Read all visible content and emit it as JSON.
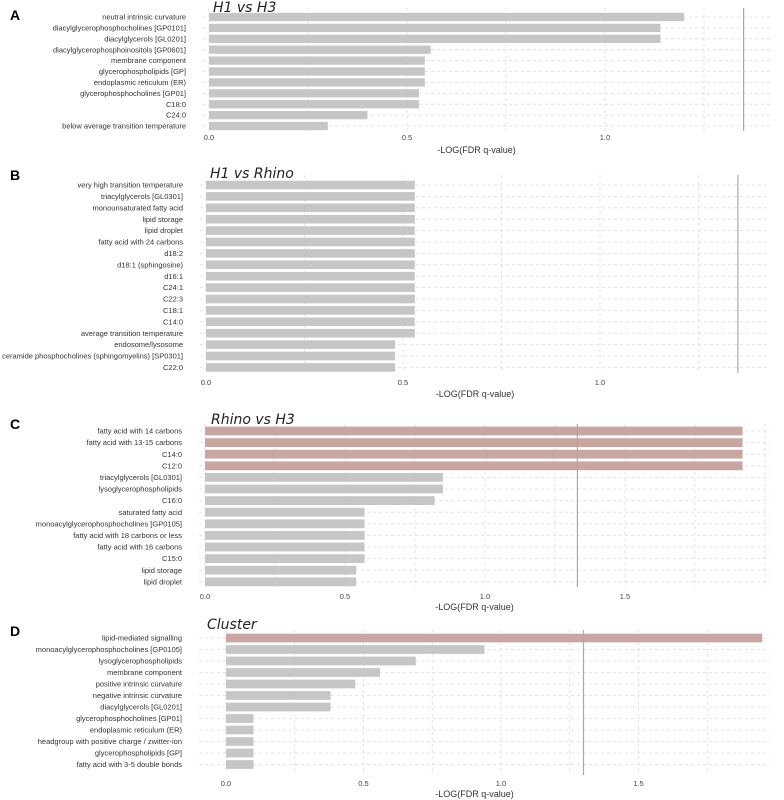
{
  "chart_data": [
    {
      "type": "bar",
      "orientation": "horizontal",
      "panel": "A",
      "title": "H1 vs H3",
      "xlabel": "-LOG(FDR q-value)",
      "ticks": [
        "0.0",
        "0.5",
        "1.0"
      ],
      "reference_line": 1.35,
      "categories": [
        "neutral intrinsic curvature",
        "diacylglycerophosphocholines [GP0101]",
        "diacylglycerols [GL0201]",
        "diacylglycerophosphoinositols [GP0601]",
        "membrane component",
        "glycerophospholipids [GP]",
        "endoplasmic reticulum (ER)",
        "glycerophosphocholines [GP01]",
        "C18:0",
        "C24:0",
        "below average transition temperature"
      ],
      "values": [
        1.2,
        1.14,
        1.14,
        0.56,
        0.545,
        0.545,
        0.545,
        0.53,
        0.53,
        0.4,
        0.3
      ],
      "highlight": [
        false,
        false,
        false,
        false,
        false,
        false,
        false,
        false,
        false,
        false,
        false
      ]
    },
    {
      "type": "bar",
      "orientation": "horizontal",
      "panel": "B",
      "title": "H1 vs Rhino",
      "xlabel": "-LOG(FDR q-value)",
      "ticks": [
        "0.0",
        "0.5",
        "1.0"
      ],
      "reference_line": 1.35,
      "categories": [
        "very high transition temperature",
        "triacylglycerols [GL0301]",
        "monounsaturated fatty acid",
        "lipid storage",
        "lipid droplet",
        "fatty acid with 24 carbons",
        "d18:2",
        "d18:1 (sphingosine)",
        "d16:1",
        "C24:1",
        "C22:3",
        "C18:1",
        "C14:0",
        "average transition temperature",
        "endosome/lysosome",
        "ceramide phosphocholines (sphingomyelins) [SP0301]",
        "C22:0"
      ],
      "values": [
        0.53,
        0.53,
        0.53,
        0.53,
        0.53,
        0.53,
        0.53,
        0.53,
        0.53,
        0.53,
        0.53,
        0.53,
        0.53,
        0.53,
        0.48,
        0.48,
        0.48
      ],
      "highlight": [
        false,
        false,
        false,
        false,
        false,
        false,
        false,
        false,
        false,
        false,
        false,
        false,
        false,
        false,
        false,
        false,
        false
      ]
    },
    {
      "type": "bar",
      "orientation": "horizontal",
      "panel": "C",
      "title": "Rhino vs H3",
      "xlabel": "-LOG(FDR q-value)",
      "ticks": [
        "0.0",
        "0.5",
        "1.0",
        "1.5"
      ],
      "reference_line": 1.33,
      "categories": [
        "fatty acid with 14 carbons",
        "fatty acid with 13-15 carbons",
        "C14:0",
        "C12:0",
        "triacylglycerols [GL0301]",
        "lysoglycerophospholipids",
        "C16:0",
        "saturated fatty acid",
        "monoacylglycerophosphocholines [GP0105]",
        "fatty acid with 18 carbons or less",
        "fatty acid with 16 carbons",
        "C15:0",
        "lipid storage",
        "lipid droplet"
      ],
      "values": [
        1.92,
        1.92,
        1.92,
        1.92,
        0.85,
        0.85,
        0.82,
        0.57,
        0.57,
        0.57,
        0.57,
        0.57,
        0.54,
        0.54
      ],
      "highlight": [
        true,
        true,
        true,
        true,
        false,
        false,
        false,
        false,
        false,
        false,
        false,
        false,
        false,
        false
      ]
    },
    {
      "type": "bar",
      "orientation": "horizontal",
      "panel": "D",
      "title": "Cluster",
      "xlabel": "-LOG(FDR q-value)",
      "ticks": [
        "0.0",
        "0.5",
        "1.0",
        "1.5"
      ],
      "reference_line": 1.3,
      "categories": [
        "lipid-mediated signalling",
        "monoacylglycerophosphocholines [GP0105]",
        "lysoglycerophospholipids",
        "membrane component",
        "positive intrinsic curvature",
        "negative intrinsic curvature",
        "diacylglycerols [GL0201]",
        "glycerophosphocholines [GP01]",
        "endoplasmic reticulum (ER)",
        "headgroup with positive charge / zwitter-ion",
        "glycerophospholipids [GP]",
        "fatty acid with 3-5 double bonds"
      ],
      "values": [
        1.95,
        0.94,
        0.69,
        0.56,
        0.47,
        0.38,
        0.38,
        0.1,
        0.1,
        0.1,
        0.1,
        0.1
      ],
      "highlight": [
        true,
        false,
        false,
        false,
        false,
        false,
        false,
        false,
        false,
        false,
        false,
        false
      ]
    }
  ],
  "colors": {
    "bar": "#c6c6c6",
    "bar_highlight": "#caa6a2",
    "reference_line": "#a8a8a8"
  }
}
